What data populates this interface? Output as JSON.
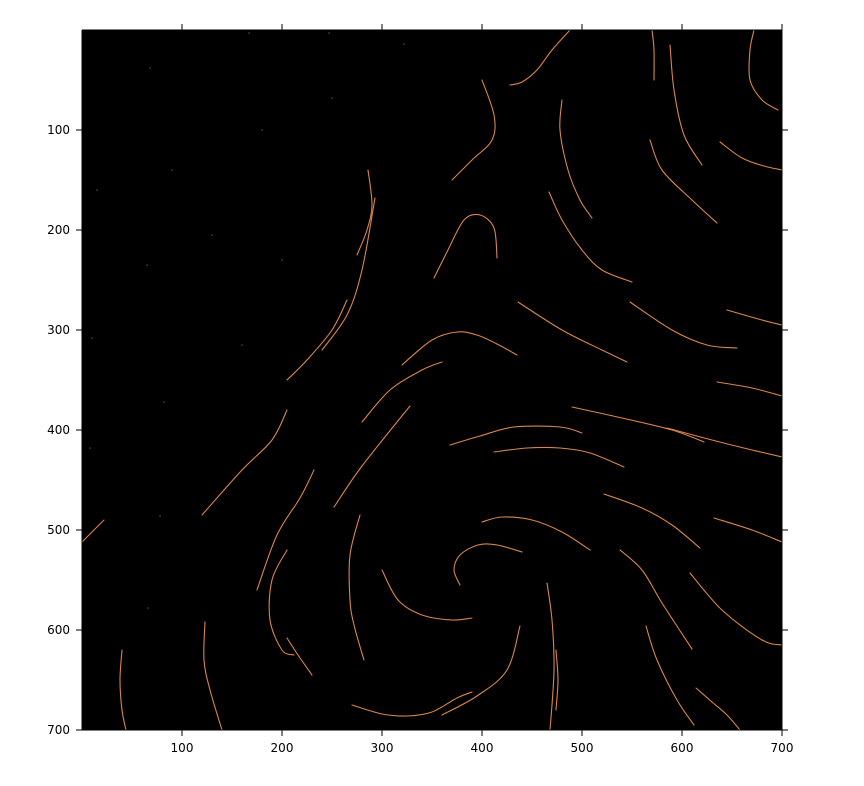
{
  "colors": {
    "background": "#000000",
    "stream": "#d9864a",
    "speck": "#666666",
    "axis": "#000000",
    "figure": "#ffffff"
  },
  "chart_data": {
    "type": "line",
    "title": "",
    "xlabel": "",
    "ylabel": "",
    "xlim": [
      0,
      700
    ],
    "ylim": [
      700,
      0
    ],
    "y_reversed": true,
    "grid": false,
    "legend": "none",
    "x_ticks": [
      100,
      200,
      300,
      400,
      500,
      600,
      700
    ],
    "y_ticks": [
      100,
      200,
      300,
      400,
      500,
      600,
      700
    ],
    "x_tick_labels": [
      "100",
      "200",
      "300",
      "400",
      "500",
      "600",
      "700"
    ],
    "y_tick_labels": [
      "100",
      "200",
      "300",
      "400",
      "500",
      "600",
      "700"
    ],
    "series": [
      {
        "points": [
          [
            0,
            512
          ],
          [
            22,
            490
          ]
        ]
      },
      {
        "points": [
          [
            40,
            620
          ],
          [
            38,
            650
          ],
          [
            40,
            680
          ],
          [
            44,
            700
          ]
        ]
      },
      {
        "points": [
          [
            123,
            592
          ],
          [
            122,
            630
          ],
          [
            128,
            660
          ],
          [
            140,
            700
          ]
        ]
      },
      {
        "points": [
          [
            120,
            485
          ],
          [
            160,
            440
          ],
          [
            190,
            410
          ],
          [
            205,
            380
          ]
        ]
      },
      {
        "points": [
          [
            205,
            350
          ],
          [
            225,
            330
          ],
          [
            250,
            300
          ],
          [
            265,
            270
          ]
        ]
      },
      {
        "points": [
          [
            240,
            320
          ],
          [
            265,
            285
          ],
          [
            280,
            240
          ],
          [
            293,
            168
          ]
        ]
      },
      {
        "points": [
          [
            275,
            225
          ],
          [
            285,
            200
          ],
          [
            290,
            175
          ],
          [
            286,
            140
          ]
        ]
      },
      {
        "points": [
          [
            175,
            560
          ],
          [
            195,
            505
          ],
          [
            218,
            468
          ],
          [
            232,
            440
          ]
        ]
      },
      {
        "points": [
          [
            205,
            520
          ],
          [
            190,
            550
          ],
          [
            188,
            590
          ],
          [
            200,
            620
          ],
          [
            212,
            625
          ]
        ]
      },
      {
        "points": [
          [
            205,
            608
          ],
          [
            216,
            625
          ],
          [
            230,
            645
          ]
        ]
      },
      {
        "points": [
          [
            252,
            477
          ],
          [
            280,
            436
          ],
          [
            328,
            376
          ]
        ]
      },
      {
        "points": [
          [
            280,
            392
          ],
          [
            308,
            360
          ],
          [
            340,
            340
          ],
          [
            360,
            332
          ]
        ]
      },
      {
        "points": [
          [
            320,
            335
          ],
          [
            350,
            310
          ],
          [
            375,
            302
          ],
          [
            395,
            305
          ],
          [
            415,
            314
          ],
          [
            435,
            325
          ]
        ]
      },
      {
        "points": [
          [
            278,
            485
          ],
          [
            268,
            525
          ],
          [
            268,
            570
          ],
          [
            272,
            595
          ],
          [
            282,
            630
          ]
        ]
      },
      {
        "points": [
          [
            300,
            540
          ],
          [
            316,
            570
          ],
          [
            340,
            585
          ],
          [
            370,
            590
          ],
          [
            390,
            588
          ]
        ]
      },
      {
        "points": [
          [
            270,
            675
          ],
          [
            300,
            684
          ],
          [
            325,
            686
          ],
          [
            350,
            682
          ],
          [
            375,
            668
          ],
          [
            390,
            662
          ]
        ]
      },
      {
        "points": [
          [
            360,
            685
          ],
          [
            395,
            666
          ],
          [
            425,
            640
          ],
          [
            438,
            596
          ]
        ]
      },
      {
        "points": [
          [
            378,
            555
          ],
          [
            372,
            540
          ],
          [
            378,
            525
          ],
          [
            396,
            515
          ],
          [
            415,
            515
          ],
          [
            440,
            522
          ]
        ]
      },
      {
        "points": [
          [
            400,
            492
          ],
          [
            420,
            487
          ],
          [
            450,
            490
          ],
          [
            480,
            502
          ],
          [
            508,
            520
          ]
        ]
      },
      {
        "points": [
          [
            368,
            415
          ],
          [
            398,
            406
          ],
          [
            432,
            397
          ],
          [
            478,
            397
          ],
          [
            500,
            403
          ]
        ]
      },
      {
        "points": [
          [
            412,
            422
          ],
          [
            445,
            418
          ],
          [
            478,
            418
          ],
          [
            508,
            423
          ],
          [
            542,
            437
          ]
        ]
      },
      {
        "points": [
          [
            465,
            553
          ],
          [
            470,
            590
          ],
          [
            472,
            640
          ],
          [
            468,
            700
          ]
        ]
      },
      {
        "points": [
          [
            474,
            680
          ],
          [
            476,
            650
          ],
          [
            474,
            620
          ]
        ]
      },
      {
        "points": [
          [
            490,
            377
          ],
          [
            540,
            388
          ],
          [
            590,
            400
          ],
          [
            622,
            412
          ]
        ]
      },
      {
        "points": [
          [
            585,
            398
          ],
          [
            630,
            410
          ],
          [
            670,
            420
          ],
          [
            700,
            427
          ]
        ]
      },
      {
        "points": [
          [
            522,
            464
          ],
          [
            560,
            478
          ],
          [
            590,
            495
          ],
          [
            618,
            518
          ]
        ]
      },
      {
        "points": [
          [
            538,
            520
          ],
          [
            560,
            540
          ],
          [
            580,
            573
          ],
          [
            610,
            619
          ]
        ]
      },
      {
        "points": [
          [
            564,
            596
          ],
          [
            575,
            630
          ],
          [
            595,
            670
          ],
          [
            612,
            695
          ]
        ]
      },
      {
        "points": [
          [
            608,
            543
          ],
          [
            640,
            580
          ],
          [
            680,
            610
          ],
          [
            700,
            615
          ]
        ]
      },
      {
        "points": [
          [
            614,
            658
          ],
          [
            630,
            672
          ],
          [
            645,
            685
          ],
          [
            658,
            700
          ]
        ]
      },
      {
        "points": [
          [
            632,
            488
          ],
          [
            670,
            500
          ],
          [
            700,
            512
          ]
        ]
      },
      {
        "points": [
          [
            436,
            272
          ],
          [
            480,
            300
          ],
          [
            520,
            320
          ],
          [
            545,
            332
          ]
        ]
      },
      {
        "points": [
          [
            548,
            272
          ],
          [
            590,
            300
          ],
          [
            625,
            315
          ],
          [
            655,
            318
          ]
        ]
      },
      {
        "points": [
          [
            645,
            280
          ],
          [
            680,
            290
          ],
          [
            700,
            295
          ]
        ]
      },
      {
        "points": [
          [
            635,
            352
          ],
          [
            670,
            358
          ],
          [
            700,
            366
          ]
        ]
      },
      {
        "points": [
          [
            352,
            248
          ],
          [
            365,
            222
          ],
          [
            382,
            190
          ],
          [
            398,
            185
          ],
          [
            412,
            198
          ],
          [
            415,
            228
          ]
        ]
      },
      {
        "points": [
          [
            370,
            150
          ],
          [
            390,
            130
          ],
          [
            410,
            110
          ],
          [
            412,
            85
          ],
          [
            400,
            50
          ]
        ]
      },
      {
        "points": [
          [
            428,
            55
          ],
          [
            440,
            52
          ],
          [
            455,
            40
          ],
          [
            470,
            20
          ],
          [
            488,
            0
          ]
        ]
      },
      {
        "points": [
          [
            480,
            70
          ],
          [
            478,
            100
          ],
          [
            486,
            140
          ],
          [
            498,
            170
          ],
          [
            510,
            188
          ]
        ]
      },
      {
        "points": [
          [
            467,
            162
          ],
          [
            480,
            190
          ],
          [
            500,
            220
          ],
          [
            520,
            240
          ],
          [
            550,
            252
          ]
        ]
      },
      {
        "points": [
          [
            568,
            110
          ],
          [
            580,
            140
          ],
          [
            610,
            170
          ],
          [
            635,
            193
          ]
        ]
      },
      {
        "points": [
          [
            588,
            15
          ],
          [
            592,
            60
          ],
          [
            602,
            105
          ],
          [
            620,
            135
          ]
        ]
      },
      {
        "points": [
          [
            570,
            0
          ],
          [
            572,
            20
          ],
          [
            572,
            50
          ]
        ]
      },
      {
        "points": [
          [
            638,
            112
          ],
          [
            660,
            128
          ],
          [
            682,
            136
          ],
          [
            700,
            140
          ]
        ]
      },
      {
        "points": [
          [
            672,
            0
          ],
          [
            668,
            20
          ],
          [
            668,
            50
          ],
          [
            680,
            70
          ],
          [
            696,
            80
          ]
        ]
      }
    ],
    "specks": [
      [
        68,
        38
      ],
      [
        90,
        140
      ],
      [
        180,
        100
      ],
      [
        250,
        68
      ],
      [
        322,
        14
      ],
      [
        167,
        3
      ],
      [
        247,
        3
      ],
      [
        15,
        160
      ],
      [
        130,
        205
      ],
      [
        200,
        230
      ],
      [
        65,
        235
      ],
      [
        160,
        315
      ],
      [
        10,
        308
      ],
      [
        82,
        372
      ],
      [
        8,
        418
      ],
      [
        78,
        486
      ],
      [
        66,
        578
      ]
    ]
  }
}
